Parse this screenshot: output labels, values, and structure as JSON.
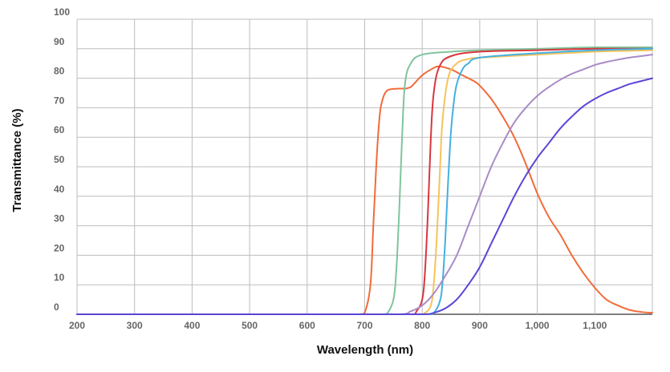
{
  "chart_data": {
    "type": "line",
    "title": "",
    "xlabel": "Wavelength (nm)",
    "ylabel": "Transmittance (%)",
    "xlim": [
      200,
      1200
    ],
    "ylim": [
      0,
      100
    ],
    "grid": true,
    "legend": "none",
    "x_ticks": [
      {
        "value": 200,
        "label": "200"
      },
      {
        "value": 300,
        "label": "300"
      },
      {
        "value": 400,
        "label": "400"
      },
      {
        "value": 500,
        "label": "500"
      },
      {
        "value": 600,
        "label": "600"
      },
      {
        "value": 700,
        "label": "700"
      },
      {
        "value": 800,
        "label": "800"
      },
      {
        "value": 900,
        "label": "900"
      },
      {
        "value": 1000,
        "label": "1,000"
      },
      {
        "value": 1100,
        "label": "1,100"
      }
    ],
    "y_ticks": [
      {
        "value": 0,
        "label": "0"
      },
      {
        "value": 10,
        "label": "10"
      },
      {
        "value": 20,
        "label": "20"
      },
      {
        "value": 30,
        "label": "30"
      },
      {
        "value": 40,
        "label": "40"
      },
      {
        "value": 50,
        "label": "50"
      },
      {
        "value": 60,
        "label": "60"
      },
      {
        "value": 70,
        "label": "70"
      },
      {
        "value": 80,
        "label": "80"
      },
      {
        "value": 90,
        "label": "90"
      },
      {
        "value": 100,
        "label": "100"
      }
    ],
    "series": [
      {
        "color": "#f26b3a",
        "x": [
          200,
          690,
          700,
          710,
          715,
          720,
          725,
          730,
          740,
          760,
          770,
          780,
          800,
          820,
          830,
          850,
          870,
          890,
          900,
          920,
          940,
          960,
          980,
          1000,
          1020,
          1040,
          1060,
          1080,
          1100,
          1120,
          1140,
          1160,
          1180,
          1200
        ],
        "y": [
          0,
          0,
          0.5,
          10,
          30,
          50,
          65,
          72,
          76,
          76.5,
          76.5,
          77,
          81,
          83.5,
          84,
          83,
          81,
          79,
          77.5,
          73,
          67,
          60,
          51,
          41,
          33,
          27,
          20,
          14,
          9,
          5,
          3,
          1.5,
          0.8,
          0.5
        ]
      },
      {
        "color": "#7fc49b",
        "x": [
          200,
          735,
          740,
          750,
          755,
          760,
          765,
          770,
          780,
          800,
          850,
          900,
          1000,
          1100,
          1200
        ],
        "y": [
          0,
          0,
          0.5,
          5,
          15,
          35,
          60,
          78,
          85,
          88,
          89,
          89.5,
          90,
          90.5,
          90.5
        ]
      },
      {
        "color": "#d9363e",
        "x": [
          200,
          785,
          790,
          800,
          805,
          810,
          815,
          820,
          830,
          850,
          900,
          1000,
          1100,
          1200
        ],
        "y": [
          0,
          0,
          1,
          5,
          15,
          35,
          60,
          75,
          84,
          87.5,
          89,
          89.5,
          90,
          90
        ]
      },
      {
        "color": "#f5c35b",
        "x": [
          200,
          795,
          805,
          815,
          820,
          825,
          830,
          835,
          845,
          860,
          880,
          900,
          1000,
          1100,
          1200
        ],
        "y": [
          0,
          0,
          0.5,
          3,
          10,
          25,
          45,
          65,
          80,
          85,
          86.5,
          87,
          88,
          89,
          89.5
        ]
      },
      {
        "color": "#45b0e0",
        "x": [
          200,
          810,
          820,
          830,
          835,
          840,
          845,
          850,
          855,
          860,
          870,
          880,
          900,
          1000,
          1100,
          1200
        ],
        "y": [
          0,
          0,
          0.5,
          4,
          10,
          25,
          45,
          62,
          72,
          78,
          83,
          85,
          87,
          88.5,
          89.5,
          90
        ]
      },
      {
        "color": "#a98bc6",
        "x": [
          200,
          760,
          780,
          800,
          820,
          840,
          860,
          880,
          900,
          920,
          940,
          960,
          980,
          1000,
          1020,
          1040,
          1060,
          1080,
          1100,
          1120,
          1140,
          1160,
          1180,
          1200
        ],
        "y": [
          0,
          0,
          1,
          3,
          7,
          13,
          20,
          30,
          40,
          50,
          58,
          65,
          70,
          74,
          77,
          79.5,
          81.5,
          83,
          84.5,
          85.5,
          86.3,
          87,
          87.5,
          88
        ]
      },
      {
        "color": "#5b45d6",
        "x": [
          200,
          800,
          820,
          840,
          860,
          880,
          900,
          920,
          940,
          960,
          980,
          1000,
          1020,
          1040,
          1060,
          1080,
          1100,
          1120,
          1140,
          1160,
          1180,
          1200
        ],
        "y": [
          0,
          0,
          0.5,
          2,
          5,
          10,
          16,
          24,
          32,
          40,
          47,
          53,
          58,
          63,
          67,
          70.5,
          73,
          75,
          76.5,
          78,
          79,
          80
        ]
      }
    ]
  }
}
